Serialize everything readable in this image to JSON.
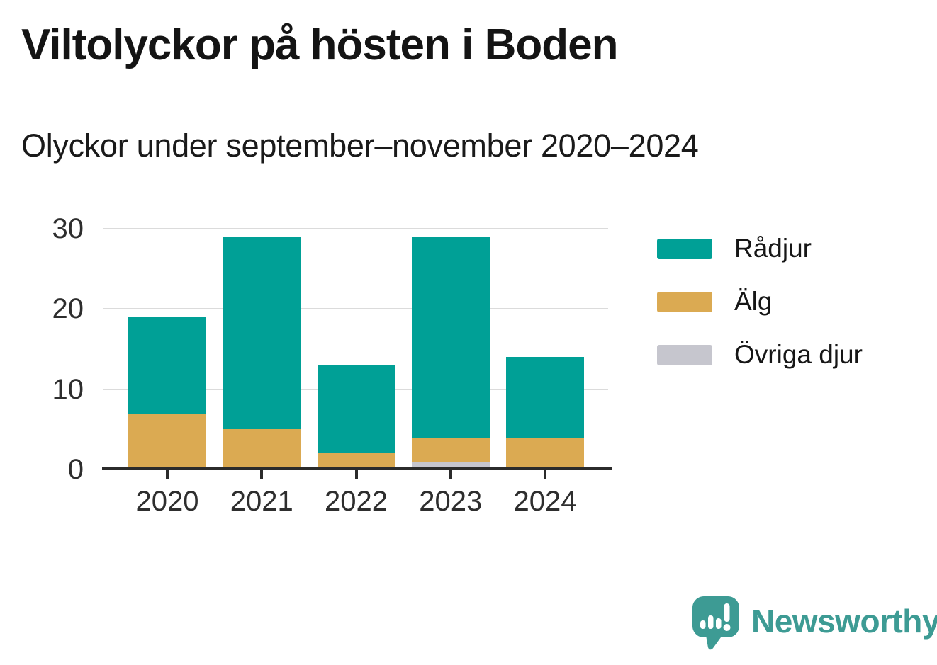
{
  "header": {
    "title": "Viltolyckor på hösten i Boden",
    "subtitle": "Olyckor under september–november 2020–2024"
  },
  "chart_data": {
    "type": "bar",
    "stacked": true,
    "title": "Viltolyckor på hösten i Boden",
    "subtitle": "Olyckor under september–november 2020–2024",
    "categories": [
      "2020",
      "2021",
      "2022",
      "2023",
      "2024"
    ],
    "series": [
      {
        "name": "Rådjur",
        "color": "#00A096",
        "values": [
          12,
          24,
          11,
          25,
          10
        ]
      },
      {
        "name": "Älg",
        "color": "#DBAA52",
        "values": [
          7,
          5,
          2,
          3,
          4
        ]
      },
      {
        "name": "Övriga djur",
        "color": "#C6C6CE",
        "values": [
          0,
          0,
          0,
          1,
          0
        ]
      }
    ],
    "stack_order_bottom_to_top": [
      "Övriga djur",
      "Älg",
      "Rådjur"
    ],
    "totals": [
      19,
      29,
      13,
      29,
      14
    ],
    "xlabel": "",
    "ylabel": "",
    "ylim": [
      0,
      30
    ],
    "yticks": [
      0,
      10,
      20,
      30
    ],
    "grid": "horizontal",
    "legend_position": "right"
  },
  "footer": {
    "logo_text": "Newsworthy",
    "logo_color": "#3D9B94"
  }
}
